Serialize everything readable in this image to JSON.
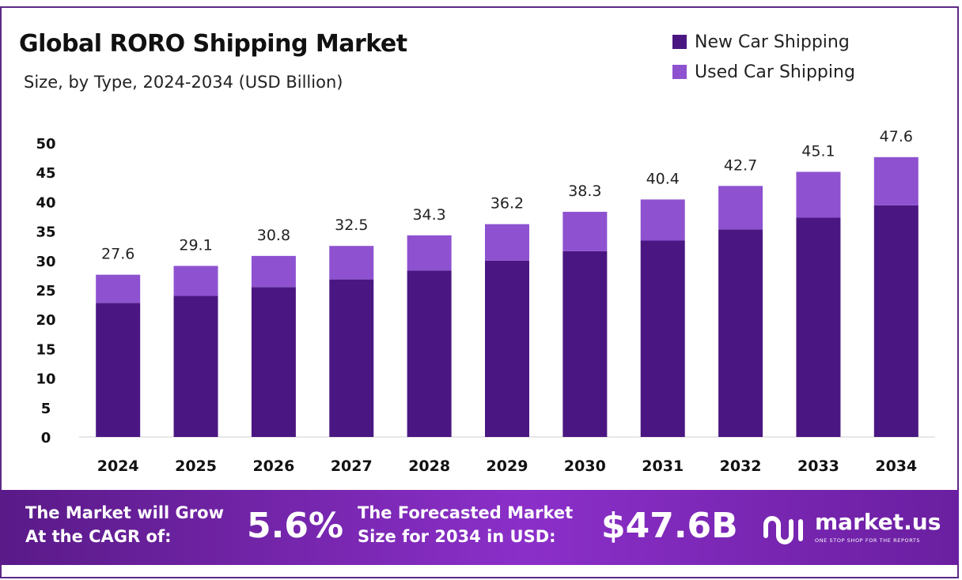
{
  "header": {
    "title": "Global RORO Shipping Market",
    "subtitle": "Size, by Type, 2024-2034 (USD Billion)"
  },
  "colors": {
    "new_car": "#4a1782",
    "used_car": "#8e52d0",
    "frame": "#5b2a86"
  },
  "chart_data": {
    "type": "bar",
    "stacked": true,
    "title": "Global RORO Shipping Market",
    "subtitle": "Size, by Type, 2024-2034 (USD Billion)",
    "categories": [
      "2024",
      "2025",
      "2026",
      "2027",
      "2028",
      "2029",
      "2030",
      "2031",
      "2032",
      "2033",
      "2034"
    ],
    "series": [
      {
        "name": "New Car Shipping",
        "values": [
          22.8,
          24.0,
          25.5,
          26.8,
          28.3,
          30.0,
          31.6,
          33.4,
          35.3,
          37.3,
          39.4
        ]
      },
      {
        "name": "Used Car Shipping",
        "values": [
          4.8,
          5.1,
          5.3,
          5.7,
          6.0,
          6.2,
          6.7,
          7.0,
          7.4,
          7.8,
          8.2
        ]
      }
    ],
    "totals": [
      27.6,
      29.1,
      30.8,
      32.5,
      34.3,
      36.2,
      38.3,
      40.4,
      42.7,
      45.1,
      47.6
    ],
    "total_labels": [
      "27.6",
      "29.1",
      "30.8",
      "32.5",
      "34.3",
      "36.2",
      "38.3",
      "40.4",
      "42.7",
      "45.1",
      "47.6"
    ],
    "yticks": [
      "0",
      "5",
      "10",
      "15",
      "20",
      "25",
      "30",
      "35",
      "40",
      "45",
      "50"
    ],
    "ylim": [
      0,
      50
    ],
    "xlabel": "",
    "ylabel": "",
    "grid": false,
    "legend": "top-right"
  },
  "banner": {
    "cagr_label_line1": "The Market will Grow",
    "cagr_label_line2": "At the CAGR of:",
    "cagr_value": "5.6%",
    "forecast_label_line1": "The Forecasted Market",
    "forecast_label_line2": "Size for 2034 in USD:",
    "forecast_value": "$47.6B"
  },
  "brand": {
    "name": "market.us",
    "tagline": "ONE STOP SHOP FOR THE REPORTS",
    "icon": "market-us-logo-icon"
  }
}
